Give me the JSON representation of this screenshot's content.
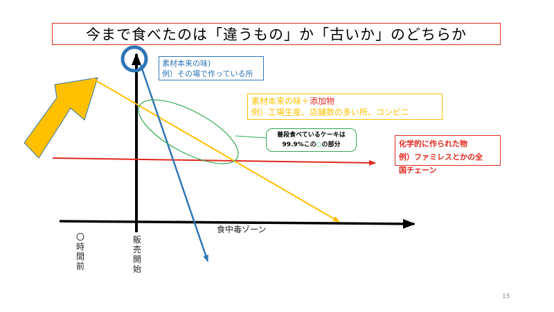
{
  "title": "今まで食べたのは「違うもの」か「古いか」のどちらか",
  "boxes": {
    "blue": {
      "line1": "素材本来の味)",
      "line2": "例）その場で作っている所"
    },
    "orange": {
      "line1_a": "素材本来の味＋",
      "line1_b": "添加物",
      "line2": "例）工場生産、店舗数の多い所、コンビニ"
    },
    "red": {
      "line1": "化学的に作られた物",
      "line2": "例）ファミレスとかの全",
      "line3": "国チェーン"
    }
  },
  "callout": {
    "line1": "普段食べているケーキは",
    "line2_a": "99.9%この",
    "line2_b": "○",
    "line2_c": "の部分"
  },
  "axis": {
    "x_label": "食中毒ゾーン",
    "y_label_chars": [
      "販",
      "売",
      "開",
      "始"
    ],
    "left_label_chars": [
      "〇",
      "時",
      "間",
      "前"
    ]
  },
  "page_number": "15",
  "colors": {
    "blue": "#2e75b6",
    "orange": "#ffc000",
    "red": "#e0281e",
    "green": "#2eaa4f",
    "black": "#000000"
  }
}
